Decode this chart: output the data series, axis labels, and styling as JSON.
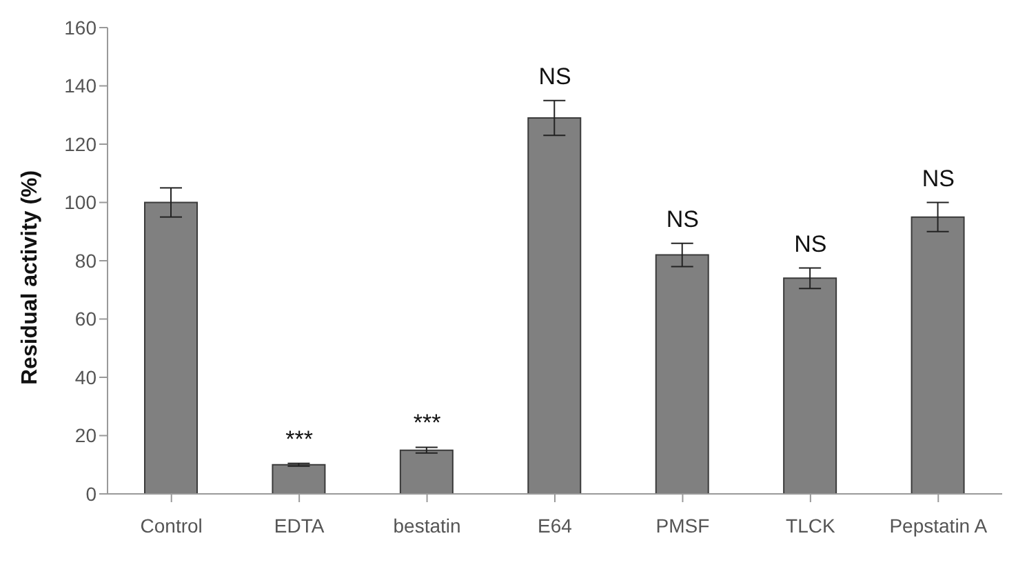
{
  "chart_data": {
    "type": "bar",
    "ylabel": "Residual activity (%)",
    "categories": [
      "Control",
      "EDTA",
      "bestatin",
      "E64",
      "PMSF",
      "TLCK",
      "Pepstatin A"
    ],
    "values": [
      100,
      10,
      15,
      129,
      82,
      74,
      95
    ],
    "errors": [
      5,
      0.5,
      1,
      6,
      4,
      3.5,
      5
    ],
    "color": "#808080",
    "ylim": [
      0,
      160
    ],
    "yticks": [
      0,
      20,
      40,
      60,
      80,
      100,
      120,
      140,
      160
    ],
    "grid": false,
    "legend": false,
    "annotations": [
      {
        "text": "***",
        "x": "EDTA",
        "y": 10.5
      },
      {
        "text": "***",
        "x": "bestatin",
        "y": 16
      },
      {
        "text": "NS",
        "x": "E64",
        "y": 135
      },
      {
        "text": "NS",
        "x": "PMSF",
        "y": 86
      },
      {
        "text": "NS",
        "x": "TLCK",
        "y": 77.5
      },
      {
        "text": "NS",
        "x": "Pepstatin A",
        "y": 100
      }
    ]
  }
}
